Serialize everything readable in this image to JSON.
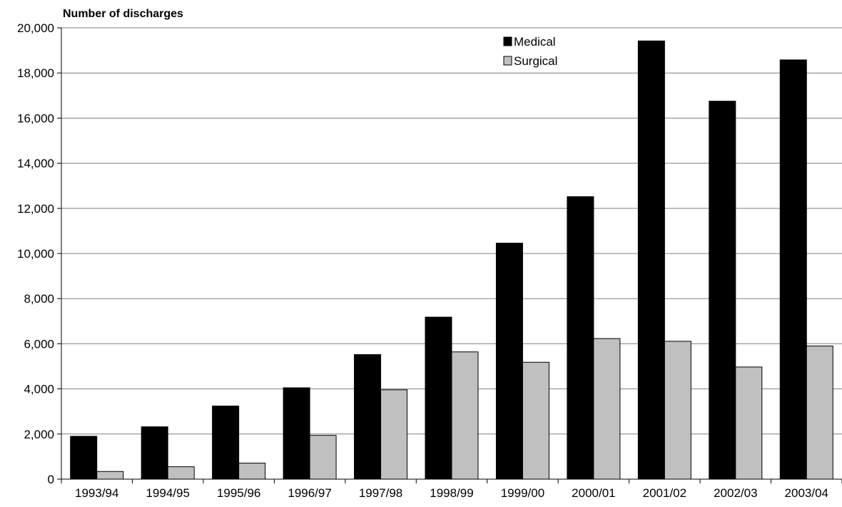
{
  "chart_data": {
    "type": "bar",
    "ylabel": "Number of discharges",
    "xlabel": "",
    "categories": [
      "1993/94",
      "1994/95",
      "1995/96",
      "1996/97",
      "1997/98",
      "1998/99",
      "1999/00",
      "2000/01",
      "2001/02",
      "2002/03",
      "2003/04"
    ],
    "series": [
      {
        "name": "Medical",
        "color": "#000000",
        "values": [
          1900,
          2320,
          3240,
          4050,
          5520,
          7180,
          10460,
          12520,
          19420,
          16750,
          18580
        ]
      },
      {
        "name": "Surgical",
        "color": "#c0c0c0",
        "values": [
          340,
          550,
          710,
          1940,
          3960,
          5640,
          5180,
          6230,
          6110,
          4970,
          5900
        ]
      }
    ],
    "ylim": [
      0,
      20000
    ],
    "yticks": [
      0,
      2000,
      4000,
      6000,
      8000,
      10000,
      12000,
      14000,
      16000,
      18000,
      20000
    ],
    "ytick_labels": [
      "0",
      "2,000",
      "4,000",
      "6,000",
      "8,000",
      "10,000",
      "12,000",
      "14,000",
      "16,000",
      "18,000",
      "20,000"
    ],
    "grid": true,
    "legend_position": "top-center"
  }
}
